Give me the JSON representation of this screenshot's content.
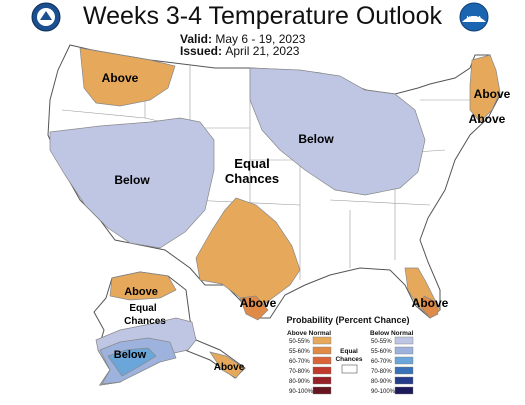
{
  "title": "Weeks 3-4 Temperature Outlook",
  "valid": {
    "label": "Valid:",
    "value": "May 6 - 19, 2023"
  },
  "issued": {
    "label": "Issued:",
    "value": "April 21, 2023"
  },
  "logos": {
    "left": "doc-seal",
    "right_text": "NOAA"
  },
  "colors": {
    "above_50_55": "#e6a95c",
    "above_55_60": "#e08a48",
    "above_60_70": "#d96439",
    "above_70_80": "#c0392b",
    "above_80_90": "#962028",
    "above_90_100": "#661520",
    "below_50_55": "#bfc6e4",
    "below_55_60": "#9db3dd",
    "below_60_70": "#6aa6d9",
    "below_70_80": "#3a72b8",
    "below_80_90": "#253c8a",
    "below_90_100": "#1d1a5c",
    "border": "#7f7f7f"
  },
  "regions": {
    "northwest_above": "Above",
    "west_below": "Below",
    "center_equal": [
      "Equal",
      "Chances"
    ],
    "great_lakes_below": "Below",
    "maine_above_1": "Above",
    "maine_above_2": "Above",
    "texas_above": "Above",
    "florida_above": "Above",
    "alaska_above_north": "Above",
    "alaska_equal": [
      "Equal",
      "Chances"
    ],
    "alaska_below": "Below",
    "alaska_panhandle_above": "Above"
  },
  "legend": {
    "title": "Probability (Percent Chance)",
    "above_header": "Above Normal",
    "below_header": "Below Normal",
    "equal_label": [
      "Equal",
      "Chances"
    ],
    "ranges": [
      "50-55%",
      "55-60%",
      "60-70%",
      "70-80%",
      "80-90%",
      "90-100%"
    ]
  }
}
